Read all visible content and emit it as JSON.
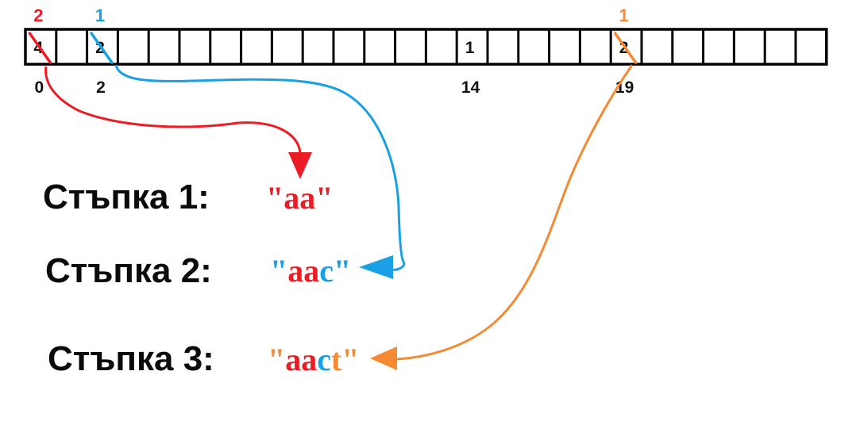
{
  "colors": {
    "red": "#ec1c24",
    "blue": "#1aa0e4",
    "orange": "#f58a33",
    "black": "#000000"
  },
  "array": {
    "cell_count": 26,
    "values": [
      {
        "index": 0,
        "value": "4"
      },
      {
        "index": 2,
        "value": "2"
      },
      {
        "index": 14,
        "value": "1"
      },
      {
        "index": 19,
        "value": "2"
      }
    ],
    "index_labels": [
      {
        "index": 0,
        "label": "0"
      },
      {
        "index": 2,
        "label": "2"
      },
      {
        "index": 14,
        "label": "14"
      },
      {
        "index": 19,
        "label": "19"
      }
    ],
    "decrements": [
      {
        "index": 0,
        "new_value": "2",
        "color": "#ec1c24"
      },
      {
        "index": 2,
        "new_value": "1",
        "color": "#1aa0e4"
      },
      {
        "index": 19,
        "new_value": "1",
        "color": "#f58a33"
      }
    ]
  },
  "steps": [
    {
      "label": "Стъпка 1",
      "colon": ":",
      "result_parts": [
        {
          "text": "\"aa\"",
          "color": "#ec1c24"
        }
      ]
    },
    {
      "label": "Стъпка 2",
      "colon": ":",
      "result_parts": [
        {
          "text": "\"",
          "color": "#1aa0e4"
        },
        {
          "text": "aa",
          "color": "#ec1c24"
        },
        {
          "text": "c\"",
          "color": "#1aa0e4"
        }
      ]
    },
    {
      "label": "Стъпка 3",
      "colon": ":",
      "result_parts": [
        {
          "text": "\"",
          "color": "#f58a33"
        },
        {
          "text": "aa",
          "color": "#ec1c24"
        },
        {
          "text": "c",
          "color": "#1aa0e4"
        },
        {
          "text": "t\"",
          "color": "#f58a33"
        }
      ]
    }
  ]
}
